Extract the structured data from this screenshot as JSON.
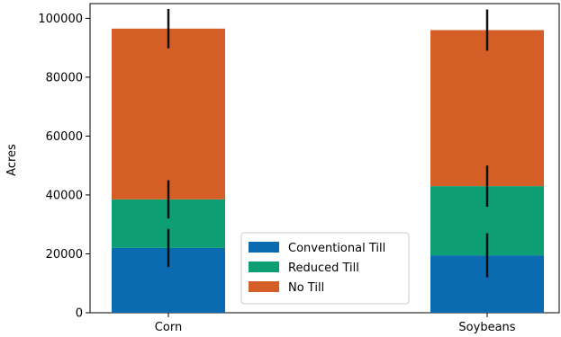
{
  "chart_data": {
    "type": "bar",
    "stacked": true,
    "categories": [
      "Corn",
      "Soybeans"
    ],
    "series": [
      {
        "name": "Conventional Till",
        "values": [
          22000,
          19500
        ],
        "errors": [
          6500,
          7500
        ],
        "color": "#0a6bb1"
      },
      {
        "name": "Reduced Till",
        "values": [
          16500,
          23500
        ],
        "errors": [
          6500,
          7000
        ],
        "color": "#0e9e73"
      },
      {
        "name": "No Till",
        "values": [
          58000,
          53000
        ],
        "errors": [
          6700,
          7000
        ],
        "color": "#d55e27"
      }
    ],
    "title": "",
    "xlabel": "",
    "ylabel": "Acres",
    "ylim": [
      0,
      105000
    ],
    "yticks": [
      0,
      20000,
      40000,
      60000,
      80000,
      100000
    ],
    "ytick_labels": [
      "0",
      "20000",
      "40000",
      "60000",
      "80000",
      "100000"
    ],
    "grid": false,
    "legend_position": "lower-center",
    "error_bar_color": "#111111"
  }
}
